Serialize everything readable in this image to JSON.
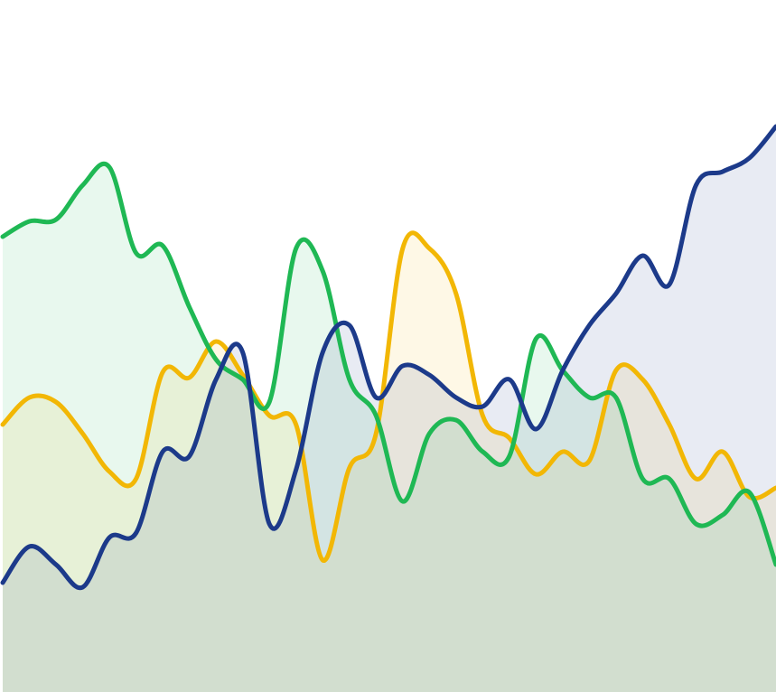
{
  "chart_data": {
    "type": "area",
    "categories": [
      null,
      null,
      null,
      null,
      null,
      null,
      null,
      null,
      null,
      null,
      null,
      null,
      null,
      null,
      null,
      null,
      null,
      null,
      null,
      null,
      null,
      null,
      null,
      null,
      null,
      null,
      null,
      null,
      null,
      null
    ],
    "ylim": [
      0,
      766
    ],
    "series": [
      {
        "color": "#f2b705",
        "values": [
          296,
          326,
          321,
          286,
          244,
          236,
          354,
          348,
          388,
          351,
          306,
          296,
          146,
          248,
          286,
          491,
          491,
          441,
          306,
          281,
          241,
          266,
          256,
          356,
          346,
          296,
          236,
          266,
          216,
          226
        ]
      },
      {
        "color": "#1fb854",
        "values": [
          504,
          521,
          523,
          561,
          581,
          486,
          494,
          426,
          368,
          346,
          321,
          491,
          466,
          346,
          306,
          211,
          286,
          301,
          266,
          261,
          391,
          356,
          326,
          326,
          236,
          236,
          186,
          196,
          221,
          141
        ]
      },
      {
        "color": "#1c3a8a",
        "values": [
          121,
          161,
          141,
          116,
          171,
          176,
          266,
          261,
          346,
          376,
          186,
          246,
          376,
          406,
          326,
          361,
          351,
          326,
          316,
          346,
          291,
          356,
          406,
          441,
          483,
          451,
          561,
          576,
          591,
          626
        ]
      }
    ]
  }
}
